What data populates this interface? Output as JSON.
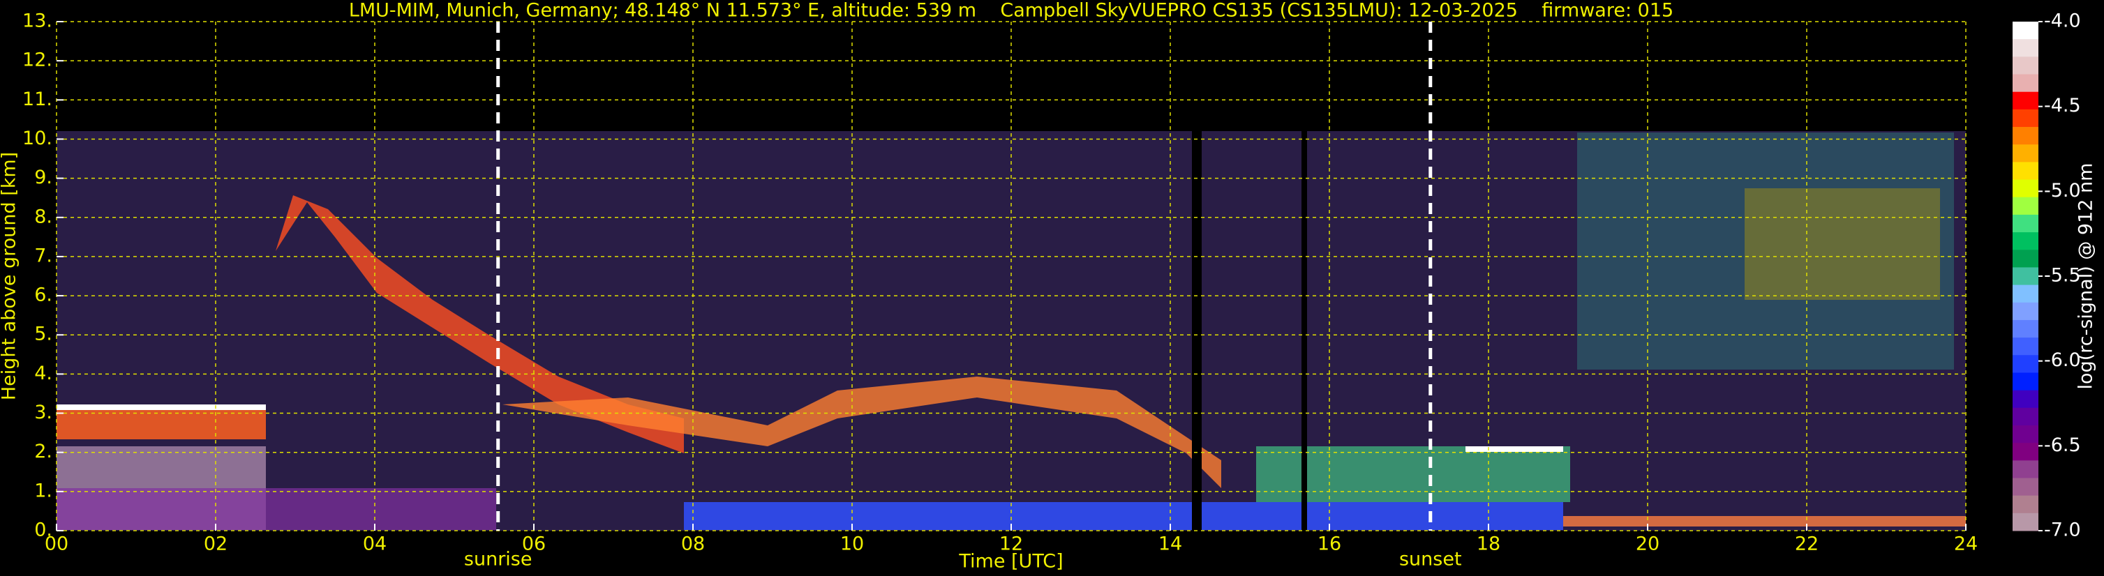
{
  "chart_data": {
    "type": "heatmap",
    "title": "LMU-MIM, Munich, Germany; 48.148° N 11.573° E, altitude: 539 m    Campbell SkyVUEPRO CS135 (CS135LMU): 12-03-2025    firmware: 015",
    "xlabel": "Time [UTC]",
    "ylabel": "Height above ground [km]",
    "xlim": [
      0,
      24
    ],
    "xticks": [
      {
        "value": 0,
        "label": "00"
      },
      {
        "value": 2,
        "label": "02"
      },
      {
        "value": 4,
        "label": "04"
      },
      {
        "value": 6,
        "label": "06"
      },
      {
        "value": 8,
        "label": "08"
      },
      {
        "value": 10,
        "label": "10"
      },
      {
        "value": 12,
        "label": "12"
      },
      {
        "value": 14,
        "label": "14"
      },
      {
        "value": 16,
        "label": "16"
      },
      {
        "value": 18,
        "label": "18"
      },
      {
        "value": 20,
        "label": "20"
      },
      {
        "value": 22,
        "label": "22"
      },
      {
        "value": 24,
        "label": "24"
      }
    ],
    "ylim": [
      0,
      13
    ],
    "yticks": [
      {
        "value": 0,
        "label": "0."
      },
      {
        "value": 1,
        "label": "1."
      },
      {
        "value": 2,
        "label": "2."
      },
      {
        "value": 3,
        "label": "3."
      },
      {
        "value": 4,
        "label": "4."
      },
      {
        "value": 5,
        "label": "5."
      },
      {
        "value": 6,
        "label": "6."
      },
      {
        "value": 7,
        "label": "7."
      },
      {
        "value": 8,
        "label": "8."
      },
      {
        "value": 9,
        "label": "9."
      },
      {
        "value": 10,
        "label": "10."
      },
      {
        "value": 11,
        "label": "11."
      },
      {
        "value": 12,
        "label": "12."
      },
      {
        "value": 13,
        "label": "13."
      }
    ],
    "grid": true,
    "annotations": [
      {
        "text": "sunrise",
        "x": 5.55
      },
      {
        "text": "sunset",
        "x": 17.27
      }
    ],
    "colorbar": {
      "label": "log(rc-signal) @ 912 nm",
      "lim": [
        -7,
        -4
      ],
      "ticks": [
        {
          "value": -4,
          "label": "-4.0"
        },
        {
          "value": -4.5,
          "label": "-4.5"
        },
        {
          "value": -5,
          "label": "-5.0"
        },
        {
          "value": -5.5,
          "label": "-5.5"
        },
        {
          "value": -6,
          "label": "-6.0"
        },
        {
          "value": -6.5,
          "label": "-6.5"
        },
        {
          "value": -7,
          "label": "-7.0"
        }
      ],
      "colors": [
        "#ffffff",
        "#f0e0e0",
        "#e8c8c8",
        "#e8b0b0",
        "#ff0000",
        "#ff4000",
        "#ff8000",
        "#ffb000",
        "#ffe000",
        "#e0ff00",
        "#a0ff40",
        "#40e080",
        "#00c060",
        "#00a050",
        "#40c0a0",
        "#80c0ff",
        "#80a0ff",
        "#6080ff",
        "#4060ff",
        "#2040ff",
        "#0020ff",
        "#4000c0",
        "#6000a0",
        "#700090",
        "#800080",
        "#904090",
        "#a06090",
        "#b08090",
        "#b898a8"
      ]
    }
  }
}
